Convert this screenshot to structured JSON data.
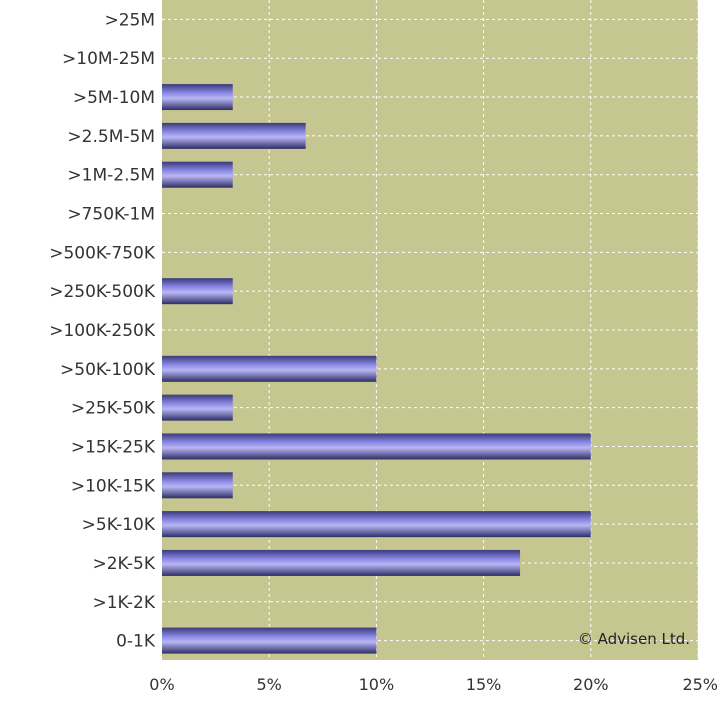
{
  "chart_data": {
    "type": "bar",
    "orientation": "horizontal",
    "categories": [
      ">25M",
      ">10M-25M",
      ">5M-10M",
      ">2.5M-5M",
      ">1M-2.5M",
      ">750K-1M",
      ">500K-750K",
      ">250K-500K",
      ">100K-250K",
      ">50K-100K",
      ">25K-50K",
      ">15K-25K",
      ">10K-15K",
      ">5K-10K",
      ">2K-5K",
      ">1K-2K",
      "0-1K"
    ],
    "values": [
      0,
      0,
      3.3,
      6.7,
      3.3,
      0,
      0,
      3.3,
      0,
      10.0,
      3.3,
      20.0,
      3.3,
      20.0,
      16.7,
      0,
      10.0
    ],
    "xlim": [
      0,
      25
    ],
    "xticks": [
      0,
      5,
      10,
      15,
      20,
      25
    ],
    "xtick_labels": [
      "0%",
      "5%",
      "10%",
      "15%",
      "20%",
      "25%"
    ],
    "grid": true,
    "plot_background": "#c6c690",
    "bar_color": "#7a78d8",
    "annotation": "© Advisen Ltd."
  }
}
